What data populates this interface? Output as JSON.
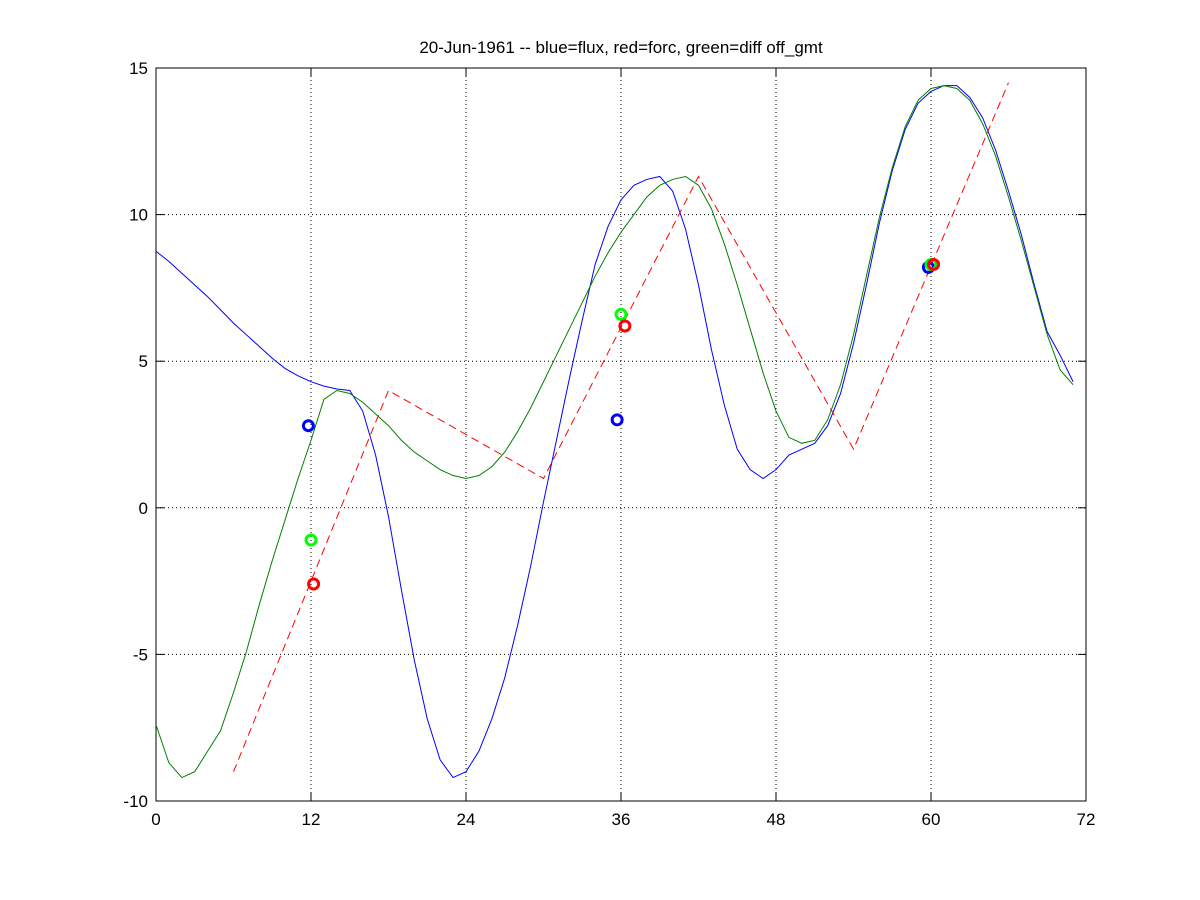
{
  "chart_data": {
    "type": "line",
    "title": "20-Jun-1961 -- blue=flux, red=forc, green=diff off_gmt",
    "x": [
      0,
      1,
      2,
      3,
      4,
      5,
      6,
      7,
      8,
      9,
      10,
      11,
      12,
      13,
      14,
      15,
      16,
      17,
      18,
      19,
      20,
      21,
      22,
      23,
      24,
      25,
      26,
      27,
      28,
      29,
      30,
      31,
      32,
      33,
      34,
      35,
      36,
      37,
      38,
      39,
      40,
      41,
      42,
      43,
      44,
      45,
      46,
      47,
      48,
      49,
      50,
      51,
      52,
      53,
      54,
      55,
      56,
      57,
      58,
      59,
      60,
      61,
      62,
      63,
      64,
      65,
      66,
      67,
      68,
      69,
      70,
      71
    ],
    "series": [
      {
        "color": "#0000ff",
        "style": "solid",
        "values": [
          8.75,
          8.4,
          8.0,
          7.6,
          7.2,
          6.75,
          6.3,
          5.9,
          5.5,
          5.1,
          4.75,
          4.5,
          4.3,
          4.15,
          4.05,
          4.0,
          3.3,
          1.8,
          -0.3,
          -2.8,
          -5.2,
          -7.2,
          -8.6,
          -9.2,
          -9.0,
          -8.3,
          -7.2,
          -5.8,
          -4.0,
          -2.0,
          0.2,
          2.3,
          4.4,
          6.4,
          8.3,
          9.6,
          10.5,
          11.0,
          11.2,
          11.3,
          10.8,
          9.5,
          7.6,
          5.4,
          3.5,
          2.0,
          1.3,
          1.0,
          1.3,
          1.8,
          2.0,
          2.2,
          2.8,
          3.9,
          5.6,
          7.6,
          9.7,
          11.5,
          12.9,
          13.8,
          14.2,
          14.4,
          14.4,
          14.0,
          13.3,
          12.2,
          10.8,
          9.3,
          7.6,
          6.0,
          5.2,
          4.3
        ]
      },
      {
        "color": "#008000",
        "style": "solid",
        "values": [
          -7.4,
          -8.7,
          -9.2,
          -9.0,
          -8.3,
          -7.6,
          -6.3,
          -4.9,
          -3.3,
          -1.8,
          -0.4,
          1.0,
          2.3,
          3.7,
          4.0,
          3.9,
          3.6,
          3.2,
          2.8,
          2.3,
          1.9,
          1.6,
          1.3,
          1.1,
          1.0,
          1.1,
          1.4,
          1.9,
          2.6,
          3.4,
          4.3,
          5.2,
          6.1,
          7.0,
          7.9,
          8.7,
          9.4,
          10.0,
          10.6,
          11.0,
          11.2,
          11.3,
          11.0,
          10.2,
          9.0,
          7.6,
          6.1,
          4.6,
          3.3,
          2.4,
          2.2,
          2.3,
          3.0,
          4.2,
          5.9,
          7.9,
          9.9,
          11.6,
          13.0,
          13.9,
          14.3,
          14.4,
          14.3,
          13.9,
          13.1,
          12.0,
          10.6,
          9.1,
          7.5,
          5.9,
          4.7,
          4.2
        ]
      },
      {
        "color": "#ff0000",
        "style": "dashed",
        "x": [
          6,
          18,
          30,
          42,
          54,
          66
        ],
        "values": [
          -9,
          4,
          1,
          11.3,
          2,
          14.5
        ]
      },
      {
        "color": "#0000ff",
        "style": "marker",
        "x": [
          11.8,
          35.7,
          59.8
        ],
        "values": [
          2.8,
          3.0,
          8.2
        ]
      },
      {
        "color": "#00ff00",
        "style": "marker",
        "x": [
          12,
          36,
          60
        ],
        "values": [
          -1.1,
          6.6,
          8.3
        ]
      },
      {
        "color": "#ff0000",
        "style": "marker",
        "x": [
          12.2,
          36.3,
          60.2
        ],
        "values": [
          -2.6,
          6.2,
          8.3
        ]
      }
    ],
    "xlim": [
      0,
      72
    ],
    "xticks": [
      0,
      12,
      24,
      36,
      48,
      60,
      72
    ],
    "ylim": [
      -10,
      15
    ],
    "yticks": [
      -10,
      -5,
      0,
      5,
      10,
      15
    ],
    "grid": true
  }
}
